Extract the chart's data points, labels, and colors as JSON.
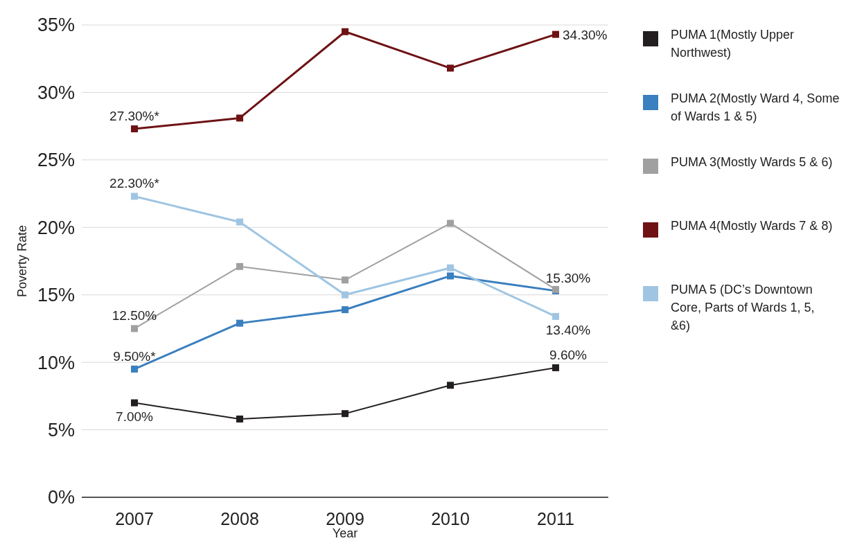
{
  "chart_data": {
    "type": "line",
    "xlabel": "Year",
    "ylabel": "Poverty Rate",
    "categories": [
      "2007",
      "2008",
      "2009",
      "2010",
      "2011"
    ],
    "ylim": [
      0,
      35
    ],
    "yticks": [
      {
        "value": 0,
        "label": "0%"
      },
      {
        "value": 5,
        "label": "5%"
      },
      {
        "value": 10,
        "label": "10%"
      },
      {
        "value": 15,
        "label": "15%"
      },
      {
        "value": 20,
        "label": "20%"
      },
      {
        "value": 25,
        "label": "25%"
      },
      {
        "value": 30,
        "label": "30%"
      },
      {
        "value": 35,
        "label": "35%"
      }
    ],
    "grid": "y",
    "legend": "right",
    "marker": "square",
    "line_style": "solid",
    "series": [
      {
        "name": "PUMA 1(Mostly Upper Northwest)",
        "color": "#231f20",
        "values": [
          7.0,
          5.8,
          6.2,
          8.3,
          9.6
        ],
        "value_labels": [
          "7.00%",
          null,
          null,
          null,
          "9.60%"
        ]
      },
      {
        "name": "PUMA 2(Mostly Ward 4, Some of Wards 1 & 5)",
        "color": "#3a7fbf",
        "values": [
          9.5,
          12.9,
          13.9,
          16.4,
          15.3
        ],
        "value_labels": [
          "9.50%*",
          null,
          null,
          null,
          "15.30%"
        ]
      },
      {
        "name": "PUMA 3(Mostly Wards 5 & 6)",
        "color": "#a0a0a0",
        "values": [
          12.5,
          17.1,
          16.1,
          20.3,
          15.4
        ],
        "value_labels": [
          "12.50%",
          null,
          null,
          null,
          null
        ]
      },
      {
        "name": "PUMA 4(Mostly Wards 7 & 8)",
        "color": "#6e1214",
        "values": [
          27.3,
          28.1,
          34.5,
          31.8,
          34.3
        ],
        "value_labels": [
          "27.30%*",
          null,
          null,
          null,
          "34.30%"
        ]
      },
      {
        "name": "PUMA 5 (DC’s Downtown Core, Parts of Wards 1, 5, &6)",
        "color": "#9fc5e2",
        "values": [
          22.3,
          20.4,
          15.0,
          17.0,
          13.4
        ],
        "value_labels": [
          "22.30%*",
          null,
          null,
          null,
          "13.40%"
        ]
      }
    ]
  }
}
